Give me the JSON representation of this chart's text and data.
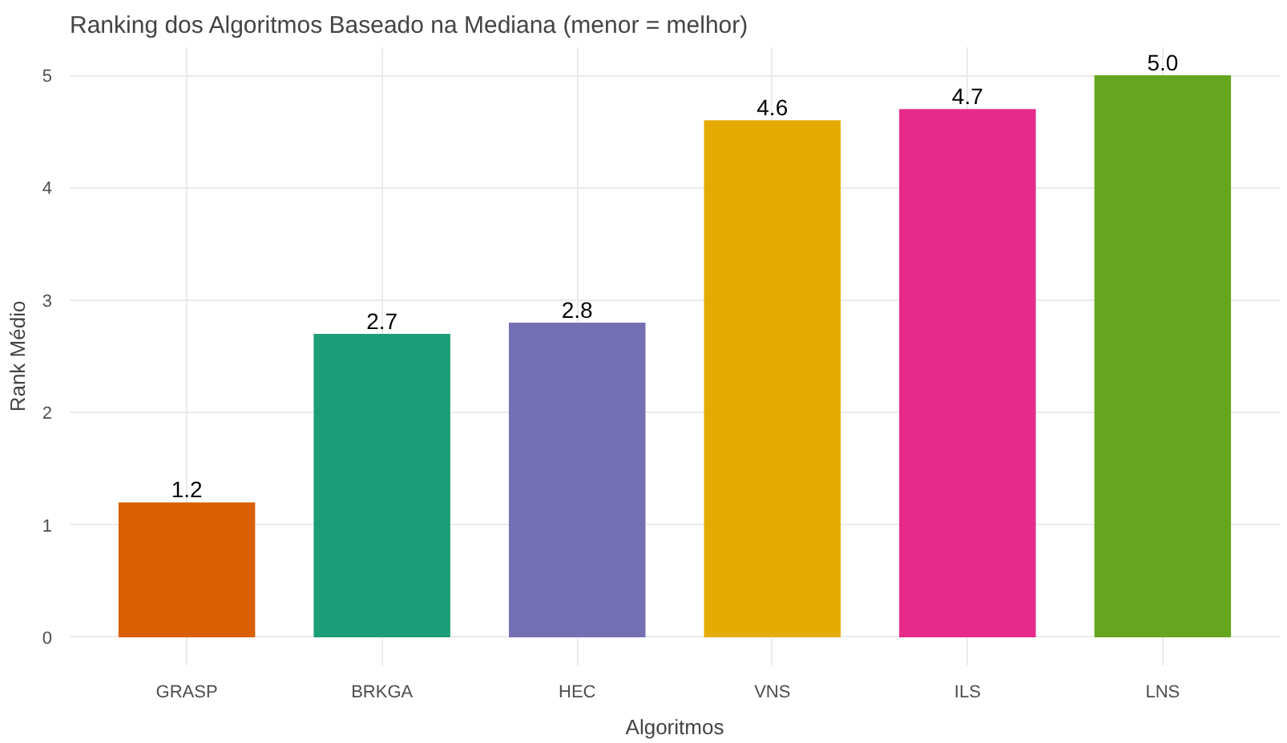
{
  "chart_data": {
    "type": "bar",
    "title": "Ranking dos Algoritmos Baseado na Mediana (menor = melhor)",
    "xlabel": "Algoritmos",
    "ylabel": "Rank Médio",
    "categories": [
      "GRASP",
      "BRKGA",
      "HEC",
      "VNS",
      "ILS",
      "LNS"
    ],
    "values": [
      1.2,
      2.7,
      2.8,
      4.6,
      4.7,
      5.0
    ],
    "colors": [
      "#d95f02",
      "#1b9e77",
      "#7570b3",
      "#e6ab02",
      "#e7298a",
      "#66a61e"
    ],
    "value_labels": [
      "1.2",
      "2.7",
      "2.8",
      "4.6",
      "4.7",
      "5.0"
    ],
    "ylim": [
      -0.25,
      5.25
    ],
    "yticks": [
      0,
      1,
      2,
      3,
      4,
      5
    ],
    "grid": true
  }
}
